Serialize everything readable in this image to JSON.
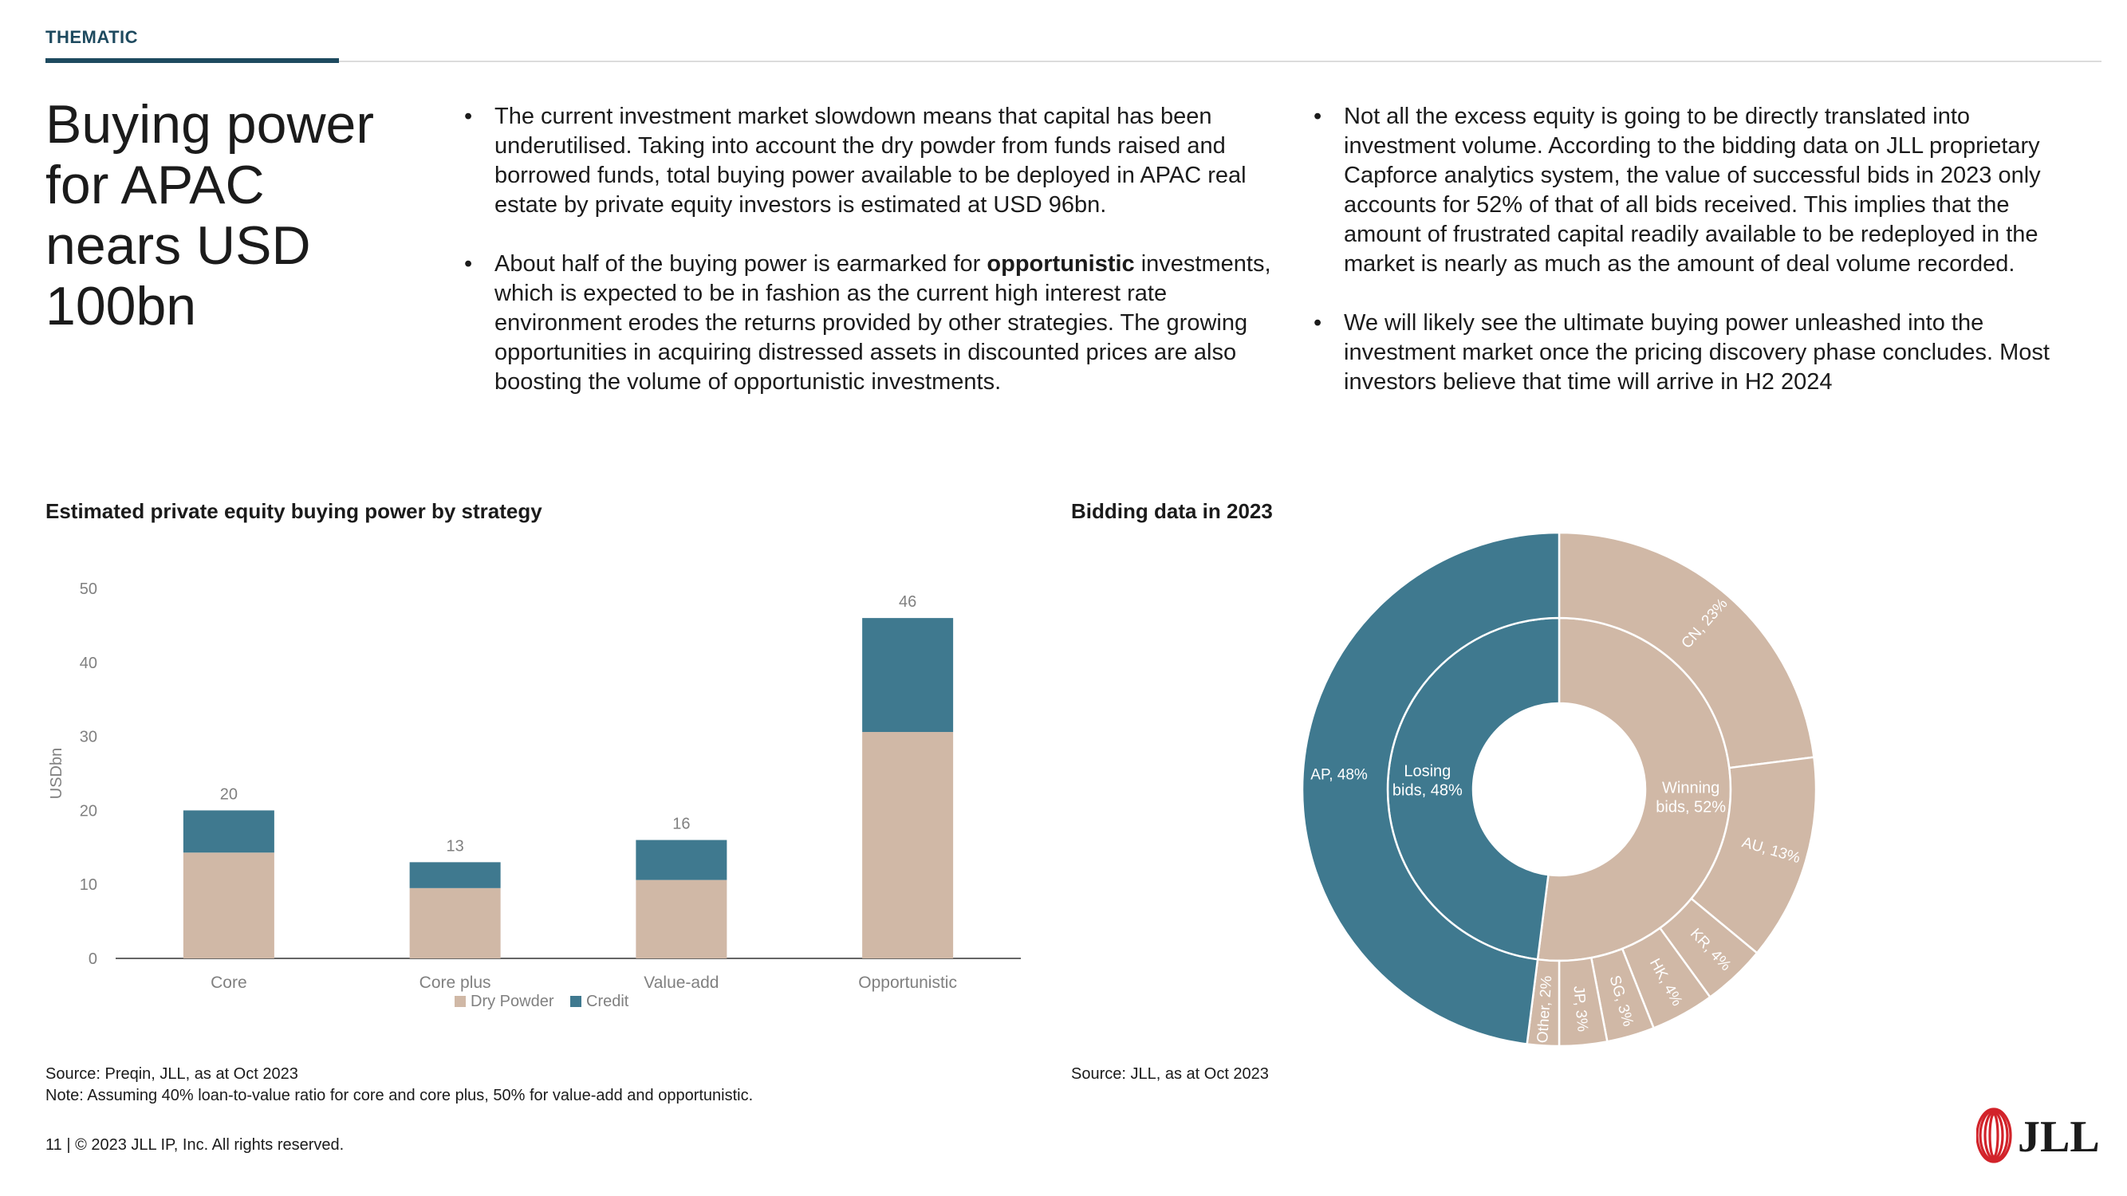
{
  "header": {
    "section_tag": "THEMATIC"
  },
  "headline": "Buying power for APAC nears USD 100bn",
  "bullets_mid": [
    {
      "text": "The current investment market slowdown means that capital has been underutilised. Taking into account the dry powder from funds raised and borrowed funds, total buying power available to be deployed in APAC real estate by private equity investors is estimated at USD 96bn."
    },
    {
      "pre": "About half of the buying power is earmarked for ",
      "bold": "opportunistic",
      "post": " investments, which is expected to be in fashion as the current high interest rate environment erodes the returns provided by other strategies. The growing opportunities in acquiring distressed assets in discounted prices are also boosting the volume of opportunistic investments."
    }
  ],
  "bullets_right": [
    {
      "text": "Not all the excess equity is going to be directly translated into investment volume. According to the bidding data on JLL proprietary Capforce analytics system, the value of successful bids in 2023 only accounts for 52% of that of all bids received. This implies that the amount of frustrated capital readily available to be redeployed in the market is nearly as much as the amount of deal volume recorded."
    },
    {
      "text": "We will likely see the ultimate buying power unleashed into the investment market once the pricing discovery phase concludes. Most investors believe that time will arrive in H2 2024"
    }
  ],
  "bullet_char": "•",
  "bar_chart_title": "Estimated private equity buying power by strategy",
  "donut_chart_title": "Bidding data in 2023",
  "colors": {
    "dry_powder": "#d0b8a6",
    "credit": "#3f798f",
    "accent": "#1e4a5f",
    "axis_text": "#808080",
    "logo_red": "#d2232a"
  },
  "chart_data": [
    {
      "type": "bar",
      "stacked": true,
      "categories": [
        "Core",
        "Core plus",
        "Value-add",
        "Opportunistic"
      ],
      "series": [
        {
          "name": "Dry Powder",
          "values": [
            14.3,
            9.5,
            10.6,
            30.6
          ]
        },
        {
          "name": "Credit",
          "values": [
            5.7,
            3.5,
            5.4,
            15.4
          ]
        }
      ],
      "totals": [
        20,
        13,
        16,
        46
      ],
      "total_labels": [
        "20",
        "13",
        "16",
        "46"
      ],
      "ylabel": "USDbn",
      "ylim": [
        0,
        50
      ],
      "yticks": [
        0,
        10,
        20,
        30,
        40,
        50
      ],
      "ytick_labels": [
        "0",
        "10",
        "20",
        "30",
        "40",
        "50"
      ],
      "legend_position": "bottom",
      "grid": false
    },
    {
      "type": "pie",
      "variant": "sunburst",
      "inner": [
        {
          "label": "Winning bids, 52%",
          "lines": [
            "Winning",
            "bids, 52%"
          ],
          "value": 52,
          "color": "#d0b8a6"
        },
        {
          "label": "Losing bids, 48%",
          "lines": [
            "Losing",
            "bids, 48%"
          ],
          "value": 48,
          "color": "#3f798f"
        }
      ],
      "outer": [
        {
          "label": "CN, 23%",
          "value": 23,
          "color": "#d0b8a6"
        },
        {
          "label": "AU, 13%",
          "value": 13,
          "color": "#d0b8a6"
        },
        {
          "label": "KR, 4%",
          "value": 4,
          "color": "#d0b8a6"
        },
        {
          "label": "HK, 4%",
          "value": 4,
          "color": "#d0b8a6"
        },
        {
          "label": "SG, 3%",
          "value": 3,
          "color": "#d0b8a6"
        },
        {
          "label": "JP, 3%",
          "value": 3,
          "color": "#d0b8a6"
        },
        {
          "label": "Other, 2%",
          "value": 2,
          "color": "#d0b8a6"
        },
        {
          "label": "AP, 48%",
          "value": 48,
          "color": "#3f798f"
        }
      ]
    }
  ],
  "source_left": "Source: Preqin, JLL, as at Oct 2023",
  "note_left": "Note:  Assuming 40% loan-to-value ratio for core and core plus, 50% for value-add and opportunistic.",
  "source_right": "Source: JLL, as at Oct 2023",
  "footer": "11 | © 2023 JLL IP, Inc. All rights reserved.",
  "logo_text": "JLL"
}
